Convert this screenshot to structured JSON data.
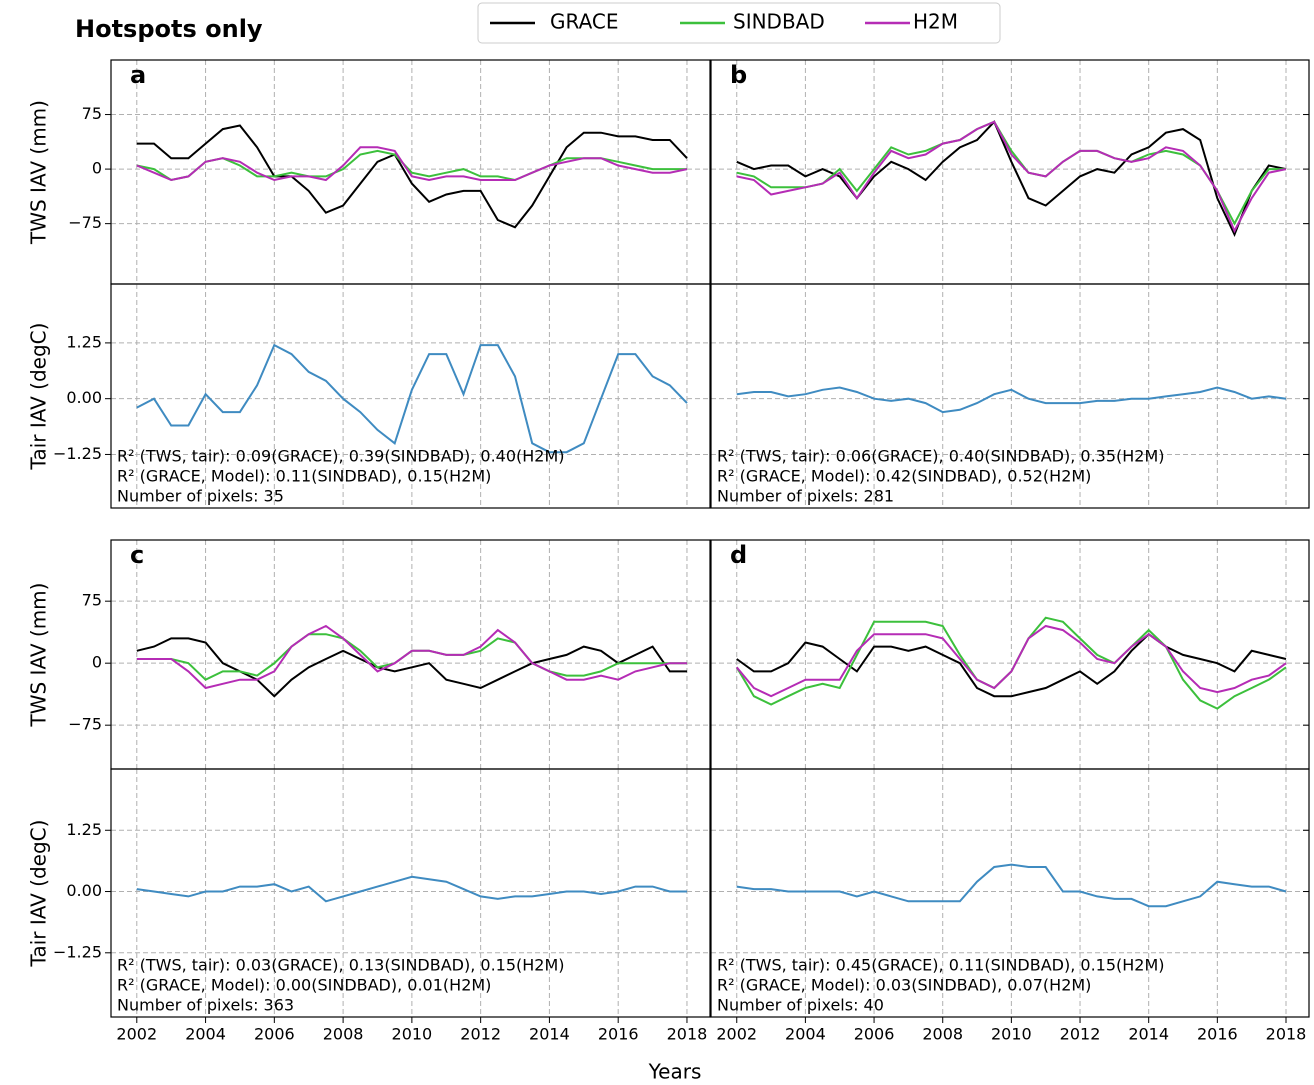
{
  "figure": {
    "title": "Hotspots only",
    "xlabel": "Years",
    "x": [
      2002,
      2002.5,
      2003,
      2003.5,
      2004,
      2004.5,
      2005,
      2005.5,
      2006,
      2006.5,
      2007,
      2007.5,
      2008,
      2008.5,
      2009,
      2009.5,
      2010,
      2010.5,
      2011,
      2011.5,
      2012,
      2012.5,
      2013,
      2013.5,
      2014,
      2014.5,
      2015,
      2015.5,
      2016,
      2016.5,
      2017,
      2017.5,
      2018
    ],
    "xlim": [
      2001.25,
      2018.67
    ],
    "xticks": [
      2002,
      2004,
      2006,
      2008,
      2010,
      2012,
      2014,
      2016,
      2018
    ]
  },
  "chart_data": [
    {
      "type": "line",
      "panel_label": "a",
      "ylabel": "TWS IAV (mm)",
      "ylim": [
        -158,
        150
      ],
      "yticks": [
        {
          "value": -75,
          "label": "−75"
        },
        0,
        75
      ],
      "grid": true,
      "series": [
        {
          "name": "GRACE",
          "color": "#000000",
          "values": [
            35,
            35,
            15,
            15,
            35,
            55,
            60,
            30,
            -10,
            -10,
            -30,
            -60,
            -50,
            -20,
            10,
            20,
            -20,
            -45,
            -35,
            -30,
            -30,
            -70,
            -80,
            -50,
            -10,
            30,
            50,
            50,
            45,
            45,
            40,
            40,
            15
          ]
        },
        {
          "name": "SINDBAD",
          "color": "#3cc03c",
          "values": [
            5,
            0,
            -15,
            -10,
            10,
            15,
            5,
            -10,
            -10,
            -5,
            -10,
            -10,
            0,
            20,
            25,
            20,
            -5,
            -10,
            -5,
            0,
            -10,
            -10,
            -15,
            -5,
            5,
            15,
            15,
            15,
            10,
            5,
            0,
            0,
            0
          ]
        },
        {
          "name": "H2M",
          "color": "#b52cb5",
          "values": [
            5,
            -5,
            -15,
            -10,
            10,
            15,
            10,
            -5,
            -15,
            -10,
            -10,
            -15,
            5,
            30,
            30,
            25,
            -10,
            -15,
            -10,
            -10,
            -15,
            -15,
            -15,
            -5,
            5,
            10,
            15,
            15,
            5,
            0,
            -5,
            -5,
            0
          ]
        }
      ]
    },
    {
      "type": "line",
      "ylabel": "Tair IAV (degC)",
      "ylim": [
        -2.45,
        2.57
      ],
      "yticks": [
        {
          "value": -1.25,
          "label": "−1.25"
        },
        {
          "value": 0,
          "label": "0.00"
        },
        1.25
      ],
      "grid": true,
      "series": [
        {
          "name": "Tair",
          "color": "#3f8bc1",
          "values": [
            -0.2,
            0,
            -0.6,
            -0.6,
            0.1,
            -0.3,
            -0.3,
            0.3,
            1.2,
            1.0,
            0.6,
            0.4,
            0.0,
            -0.3,
            -0.7,
            -1.0,
            0.2,
            1.0,
            1.0,
            0.1,
            1.2,
            1.2,
            0.5,
            -1.0,
            -1.2,
            -1.2,
            -1.0,
            0.0,
            1.0,
            1.0,
            0.5,
            0.3,
            -0.1
          ]
        }
      ],
      "annotations": [
        "R² (TWS, tair): 0.09(GRACE), 0.39(SINDBAD), 0.40(H2M)",
        "R² (GRACE, Model): 0.11(SINDBAD), 0.15(H2M)",
        "Number of pixels: 35"
      ]
    },
    {
      "type": "line",
      "panel_label": "b",
      "ylim": [
        -158,
        150
      ],
      "yticks": [
        {
          "value": -75,
          "label": "−75"
        },
        0,
        75
      ],
      "grid": true,
      "series": [
        {
          "name": "GRACE",
          "color": "#000000",
          "values": [
            10,
            0,
            5,
            5,
            -10,
            0,
            -10,
            -40,
            -10,
            10,
            0,
            -15,
            10,
            30,
            40,
            65,
            10,
            -40,
            -50,
            -30,
            -10,
            0,
            -5,
            20,
            30,
            50,
            55,
            40,
            -40,
            -90,
            -30,
            5,
            0
          ]
        },
        {
          "name": "SINDBAD",
          "color": "#3cc03c",
          "values": [
            -5,
            -10,
            -25,
            -25,
            -25,
            -20,
            0,
            -30,
            0,
            30,
            20,
            25,
            35,
            40,
            55,
            65,
            25,
            -5,
            -10,
            10,
            25,
            25,
            15,
            10,
            20,
            25,
            20,
            5,
            -30,
            -75,
            -30,
            0,
            0
          ]
        },
        {
          "name": "H2M",
          "color": "#b52cb5",
          "values": [
            -10,
            -15,
            -35,
            -30,
            -25,
            -20,
            -5,
            -40,
            -5,
            25,
            15,
            20,
            35,
            40,
            55,
            65,
            20,
            -5,
            -10,
            10,
            25,
            25,
            15,
            10,
            15,
            30,
            25,
            5,
            -30,
            -85,
            -40,
            -5,
            0
          ]
        }
      ]
    },
    {
      "type": "line",
      "ylim": [
        -2.45,
        2.57
      ],
      "yticks": [
        {
          "value": -1.25,
          "label": "−1.25"
        },
        {
          "value": 0,
          "label": "0.00"
        },
        1.25
      ],
      "grid": true,
      "series": [
        {
          "name": "Tair",
          "color": "#3f8bc1",
          "values": [
            0.1,
            0.15,
            0.15,
            0.05,
            0.1,
            0.2,
            0.25,
            0.15,
            0.0,
            -0.05,
            0.0,
            -0.1,
            -0.3,
            -0.25,
            -0.1,
            0.1,
            0.2,
            0.0,
            -0.1,
            -0.1,
            -0.1,
            -0.05,
            -0.05,
            0.0,
            0.0,
            0.05,
            0.1,
            0.15,
            0.25,
            0.15,
            0.0,
            0.05,
            0.0
          ]
        }
      ],
      "annotations": [
        "R² (TWS, tair): 0.06(GRACE), 0.40(SINDBAD), 0.35(H2M)",
        "R² (GRACE, Model): 0.42(SINDBAD), 0.52(H2M)",
        "Number of pixels: 281"
      ]
    },
    {
      "type": "line",
      "panel_label": "c",
      "ylabel": "TWS IAV (mm)",
      "ylim": [
        -128,
        149
      ],
      "yticks": [
        {
          "value": -75,
          "label": "−75"
        },
        0,
        75
      ],
      "grid": true,
      "series": [
        {
          "name": "GRACE",
          "color": "#000000",
          "values": [
            15,
            20,
            30,
            30,
            25,
            0,
            -10,
            -20,
            -40,
            -20,
            -5,
            5,
            15,
            5,
            -5,
            -10,
            -5,
            0,
            -20,
            -25,
            -30,
            -20,
            -10,
            0,
            5,
            10,
            20,
            15,
            0,
            10,
            20,
            -10,
            -10
          ]
        },
        {
          "name": "SINDBAD",
          "color": "#3cc03c",
          "values": [
            5,
            5,
            5,
            0,
            -20,
            -10,
            -10,
            -15,
            0,
            20,
            35,
            35,
            30,
            15,
            -5,
            0,
            15,
            15,
            10,
            10,
            15,
            30,
            25,
            0,
            -10,
            -15,
            -15,
            -10,
            0,
            0,
            0,
            0,
            0
          ]
        },
        {
          "name": "H2M",
          "color": "#b52cb5",
          "values": [
            5,
            5,
            5,
            -10,
            -30,
            -25,
            -20,
            -20,
            -10,
            20,
            35,
            45,
            30,
            10,
            -10,
            0,
            15,
            15,
            10,
            10,
            20,
            40,
            25,
            0,
            -10,
            -20,
            -20,
            -15,
            -20,
            -10,
            -5,
            0,
            0
          ]
        }
      ]
    },
    {
      "type": "line",
      "ylabel": "Tair IAV (degC)",
      "ylim": [
        -2.56,
        2.5
      ],
      "yticks": [
        {
          "value": -1.25,
          "label": "−1.25"
        },
        {
          "value": 0,
          "label": "0.00"
        },
        1.25
      ],
      "grid": true,
      "series": [
        {
          "name": "Tair",
          "color": "#3f8bc1",
          "values": [
            0.05,
            0.0,
            -0.05,
            -0.1,
            0.0,
            0.0,
            0.1,
            0.1,
            0.15,
            0.0,
            0.1,
            -0.2,
            -0.1,
            0.0,
            0.1,
            0.2,
            0.3,
            0.25,
            0.2,
            0.05,
            -0.1,
            -0.15,
            -0.1,
            -0.1,
            -0.05,
            0.0,
            0.0,
            -0.05,
            0.0,
            0.1,
            0.1,
            0.0,
            0.0
          ]
        }
      ],
      "annotations": [
        "R² (TWS, tair): 0.03(GRACE), 0.13(SINDBAD), 0.15(H2M)",
        "R² (GRACE, Model): 0.00(SINDBAD), 0.01(H2M)",
        "Number of pixels: 363"
      ]
    },
    {
      "type": "line",
      "panel_label": "d",
      "ylim": [
        -128,
        149
      ],
      "yticks": [
        {
          "value": -75,
          "label": "−75"
        },
        0,
        75
      ],
      "grid": true,
      "series": [
        {
          "name": "GRACE",
          "color": "#000000",
          "values": [
            5,
            -10,
            -10,
            0,
            25,
            20,
            5,
            -10,
            20,
            20,
            15,
            20,
            10,
            0,
            -30,
            -40,
            -40,
            -35,
            -30,
            -20,
            -10,
            -25,
            -10,
            15,
            35,
            20,
            10,
            5,
            0,
            -10,
            15,
            10,
            5
          ]
        },
        {
          "name": "SINDBAD",
          "color": "#3cc03c",
          "values": [
            -5,
            -40,
            -50,
            -40,
            -30,
            -25,
            -30,
            10,
            50,
            50,
            50,
            50,
            45,
            10,
            -20,
            -30,
            -10,
            30,
            55,
            50,
            30,
            10,
            0,
            20,
            40,
            20,
            -20,
            -45,
            -55,
            -40,
            -30,
            -20,
            -5
          ]
        },
        {
          "name": "H2M",
          "color": "#b52cb5",
          "values": [
            -5,
            -30,
            -40,
            -30,
            -20,
            -20,
            -20,
            15,
            35,
            35,
            35,
            35,
            30,
            5,
            -20,
            -30,
            -10,
            30,
            45,
            40,
            25,
            5,
            0,
            20,
            35,
            20,
            -10,
            -30,
            -35,
            -30,
            -20,
            -15,
            0
          ]
        }
      ]
    },
    {
      "type": "line",
      "ylim": [
        -2.56,
        2.5
      ],
      "yticks": [
        {
          "value": -1.25,
          "label": "−1.25"
        },
        {
          "value": 0,
          "label": "0.00"
        },
        1.25
      ],
      "grid": true,
      "series": [
        {
          "name": "Tair",
          "color": "#3f8bc1",
          "values": [
            0.1,
            0.05,
            0.05,
            0.0,
            0.0,
            0.0,
            0.0,
            -0.1,
            0.0,
            -0.1,
            -0.2,
            -0.2,
            -0.2,
            -0.2,
            0.2,
            0.5,
            0.55,
            0.5,
            0.5,
            0.0,
            0.0,
            -0.1,
            -0.15,
            -0.15,
            -0.3,
            -0.3,
            -0.2,
            -0.1,
            0.2,
            0.15,
            0.1,
            0.1,
            0.0
          ]
        }
      ],
      "annotations": [
        "R² (TWS, tair): 0.45(GRACE), 0.11(SINDBAD), 0.15(H2M)",
        "R² (GRACE, Model): 0.03(SINDBAD), 0.07(H2M)",
        "Number of pixels: 40"
      ]
    }
  ]
}
